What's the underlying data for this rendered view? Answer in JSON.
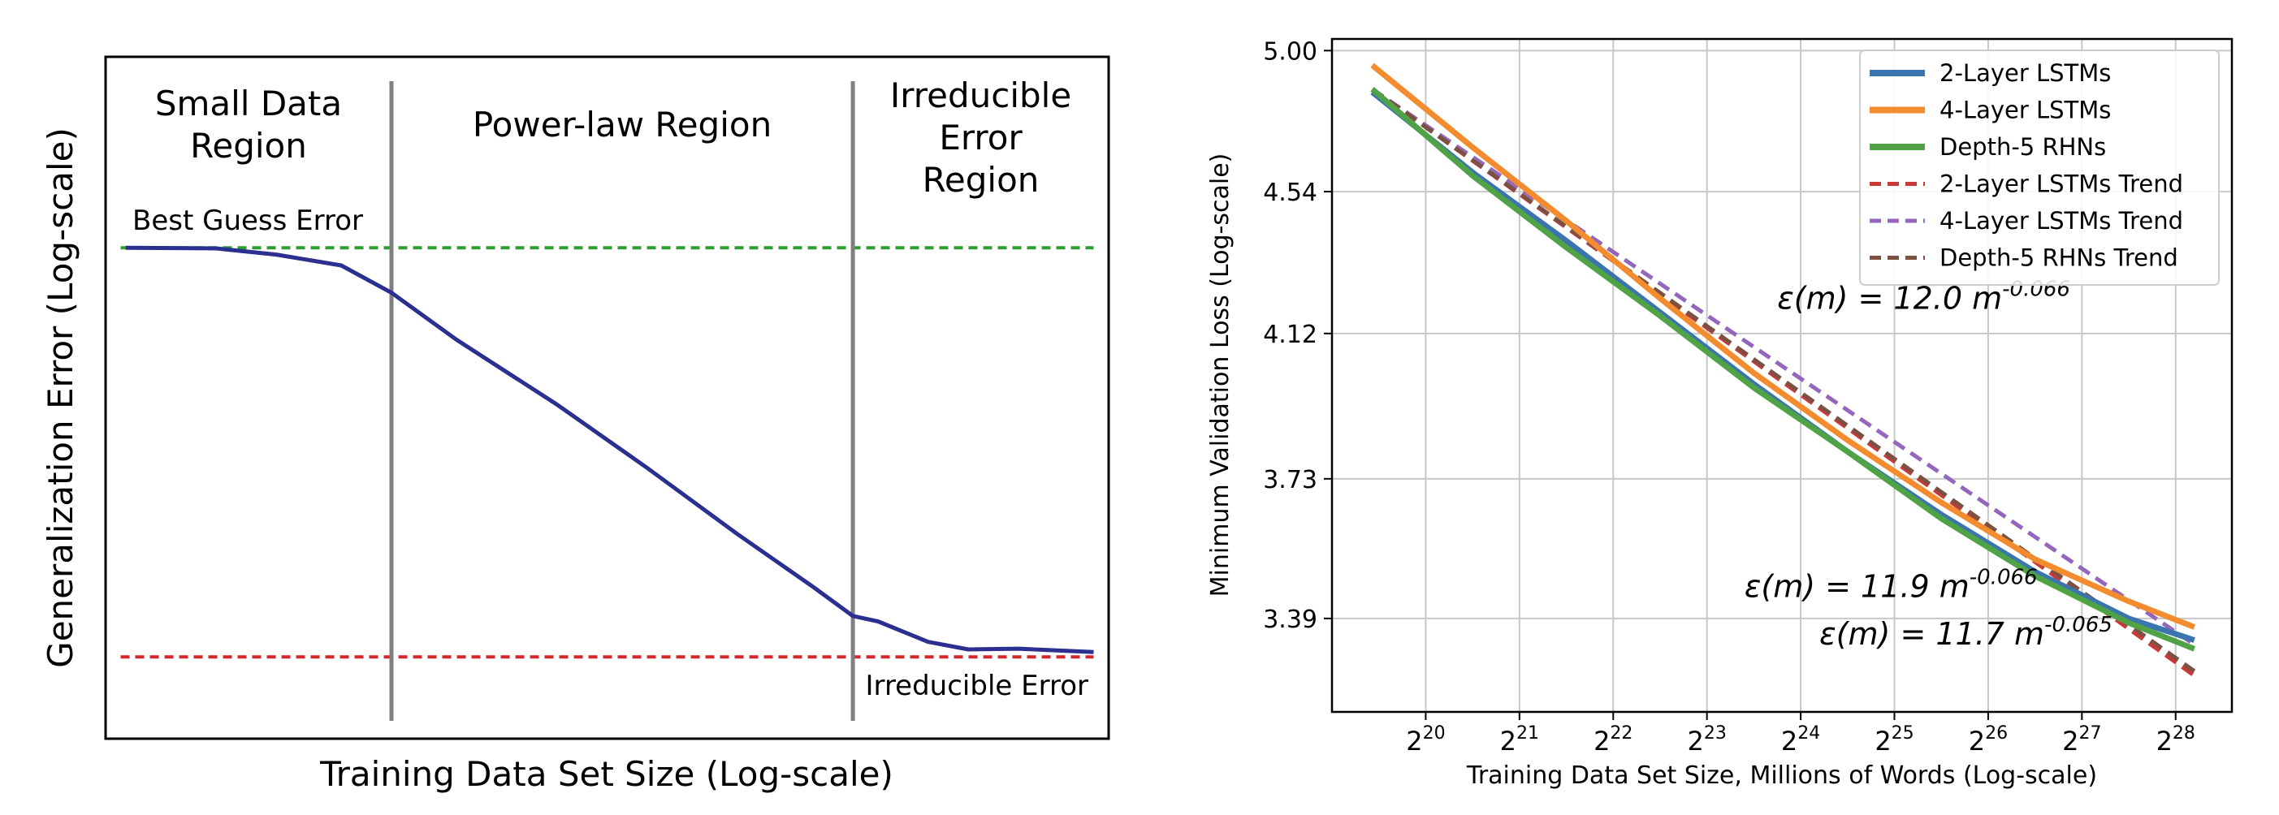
{
  "chart_data": [
    {
      "type": "line",
      "title": "",
      "xlabel": "Training Data Set Size (Log-scale)",
      "ylabel": "Generalization Error (Log-scale)",
      "grid": false,
      "x_range": [
        0,
        1
      ],
      "y_range": [
        0,
        1
      ],
      "regions": [
        {
          "name": "small-data",
          "label_lines": [
            "Small Data",
            "Region"
          ],
          "x_start": 0.0,
          "x_end": 0.285
        },
        {
          "name": "power-law",
          "label_lines": [
            "Power-law Region"
          ],
          "x_start": 0.285,
          "x_end": 0.745
        },
        {
          "name": "irreducible",
          "label_lines": [
            "Irreducible",
            "Error",
            "Region"
          ],
          "x_start": 0.745,
          "x_end": 1.0
        }
      ],
      "region_boundaries": [
        0.285,
        0.745
      ],
      "reference_lines": [
        {
          "name": "best-guess",
          "label": "Best Guess Error",
          "y": 0.72,
          "color": "#2ca02c"
        },
        {
          "name": "irreducible",
          "label": "Irreducible Error",
          "y": 0.12,
          "color": "#d62728"
        }
      ],
      "series": [
        {
          "name": "generalization-error",
          "color": "#2b2f8f",
          "x": [
            0.02,
            0.11,
            0.17,
            0.235,
            0.285,
            0.35,
            0.45,
            0.54,
            0.63,
            0.705,
            0.745,
            0.77,
            0.82,
            0.86,
            0.91,
            0.985
          ],
          "y": [
            0.72,
            0.719,
            0.71,
            0.694,
            0.654,
            0.585,
            0.49,
            0.397,
            0.3,
            0.223,
            0.18,
            0.172,
            0.142,
            0.131,
            0.132,
            0.127
          ]
        }
      ]
    },
    {
      "type": "line",
      "title": "",
      "xlabel": "Training Data Set Size, Millions of Words (Log-scale)",
      "ylabel": "Minimum Validation Loss (Log-scale)",
      "grid": true,
      "x_scale": "log2",
      "y_scale": "log",
      "xlim": [
        19.0,
        28.6
      ],
      "ylim": [
        3.18,
        5.04
      ],
      "x_ticks": [
        20,
        21,
        22,
        23,
        24,
        25,
        26,
        27,
        28
      ],
      "x_tick_base": "2",
      "y_ticks": [
        5.0,
        4.54,
        4.12,
        3.73,
        3.39
      ],
      "y_tick_labels": [
        "5.00",
        "4.54",
        "4.12",
        "3.73",
        "3.39"
      ],
      "legend_position": "top-right",
      "series": [
        {
          "name": "2-Layer LSTMs",
          "color": "#3a75b0",
          "style": "solid",
          "x": [
            19.43,
            20.5,
            21.5,
            22.5,
            23.5,
            24.5,
            25.5,
            26.5,
            27.5,
            28.2
          ],
          "y": [
            4.86,
            4.6,
            4.39,
            4.18,
            3.98,
            3.8,
            3.64,
            3.5,
            3.39,
            3.34
          ]
        },
        {
          "name": "4-Layer LSTMs",
          "color": "#f28c2e",
          "style": "solid",
          "x": [
            19.43,
            20.5,
            21.5,
            22.5,
            23.5,
            24.5,
            25.5,
            26.5,
            27.5,
            28.2
          ],
          "y": [
            4.95,
            4.68,
            4.45,
            4.22,
            4.01,
            3.83,
            3.67,
            3.53,
            3.43,
            3.37
          ]
        },
        {
          "name": "Depth-5 RHNs",
          "color": "#4fa346",
          "style": "solid",
          "x": [
            19.43,
            20.5,
            21.5,
            22.5,
            23.5,
            24.5,
            25.5,
            26.5,
            27.5,
            28.2
          ],
          "y": [
            4.87,
            4.59,
            4.37,
            4.17,
            3.97,
            3.8,
            3.63,
            3.49,
            3.38,
            3.32
          ]
        },
        {
          "name": "2-Layer LSTMs Trend",
          "color": "#c83a3a",
          "style": "dashed",
          "x": [
            19.43,
            28.2
          ],
          "y": [
            4.87,
            3.26
          ]
        },
        {
          "name": "4-Layer LSTMs Trend",
          "color": "#9467bd",
          "style": "dashed",
          "x": [
            19.43,
            28.2
          ],
          "y": [
            4.87,
            3.33
          ]
        },
        {
          "name": "Depth-5 RHNs Trend",
          "color": "#7a5143",
          "style": "dashed",
          "x": [
            19.43,
            28.2
          ],
          "y": [
            4.87,
            3.27
          ]
        }
      ],
      "annotations": [
        {
          "name": "trend-4layer",
          "prefix": "ε(m) = 12.0 m",
          "exponent": "-0.066",
          "x": 23.75,
          "y": 4.19
        },
        {
          "name": "trend-2layer",
          "prefix": "ε(m) = 11.9 m",
          "exponent": "-0.066",
          "x": 23.4,
          "y": 3.44
        },
        {
          "name": "trend-rhn",
          "prefix": "ε(m) = 11.7 m",
          "exponent": "-0.065",
          "x": 24.2,
          "y": 3.33
        }
      ]
    }
  ]
}
